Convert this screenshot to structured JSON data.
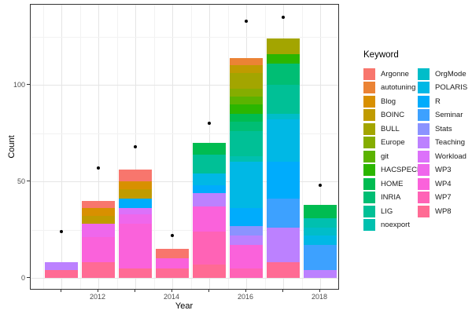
{
  "figure": {
    "y_axis": {
      "title": "Count",
      "tick_labels": [
        "0",
        "50",
        "100"
      ],
      "tick_values": [
        0,
        50,
        100
      ],
      "minor_values": [
        25,
        75,
        125
      ]
    },
    "x_axis": {
      "title": "Year",
      "tick_years": [
        2011,
        2012,
        2013,
        2014,
        2015,
        2016,
        2017,
        2018
      ],
      "labeled_years": [
        "2012",
        "2014",
        "2016",
        "2018"
      ]
    },
    "legend": {
      "title": "Keyword"
    },
    "chart_data": {
      "type": "bar",
      "stacked": true,
      "title": "",
      "xlabel": "Year",
      "ylabel": "Count",
      "ylim": [
        0,
        140
      ],
      "grid": true,
      "legend_position": "right",
      "categories": [
        2011,
        2012,
        2013,
        2014,
        2015,
        2016,
        2017,
        2018
      ],
      "series": [
        {
          "name": "Argonne",
          "color": "#F8766D",
          "values": [
            0,
            4,
            6,
            5,
            0,
            0,
            0,
            0
          ]
        },
        {
          "name": "autotuning",
          "color": "#EB8335",
          "values": [
            0,
            0,
            0,
            0,
            0,
            4,
            0,
            0
          ]
        },
        {
          "name": "Blog",
          "color": "#D89000",
          "values": [
            0,
            4,
            4,
            0,
            0,
            0,
            0,
            0
          ]
        },
        {
          "name": "BOINC",
          "color": "#C09B00",
          "values": [
            0,
            4,
            5,
            0,
            0,
            4,
            0,
            0
          ]
        },
        {
          "name": "BULL",
          "color": "#A3A500",
          "values": [
            0,
            0,
            0,
            0,
            0,
            8,
            8,
            0
          ]
        },
        {
          "name": "Europe",
          "color": "#85AD00",
          "values": [
            0,
            0,
            0,
            0,
            0,
            4,
            0,
            0
          ]
        },
        {
          "name": "git",
          "color": "#5BB300",
          "values": [
            0,
            0,
            0,
            0,
            0,
            4,
            0,
            0
          ]
        },
        {
          "name": "HACSPECIS",
          "color": "#2BB600",
          "values": [
            0,
            0,
            0,
            0,
            0,
            5,
            5,
            0
          ]
        },
        {
          "name": "HOME",
          "color": "#00BC51",
          "values": [
            0,
            0,
            0,
            0,
            6,
            4,
            0,
            7
          ]
        },
        {
          "name": "INRIA",
          "color": "#00BE74",
          "values": [
            0,
            0,
            0,
            0,
            0,
            5,
            11,
            0
          ]
        },
        {
          "name": "LIG",
          "color": "#00C096",
          "values": [
            0,
            0,
            0,
            0,
            10,
            13,
            15,
            0
          ]
        },
        {
          "name": "noexport",
          "color": "#00C0AF",
          "values": [
            0,
            0,
            0,
            0,
            0,
            3,
            0,
            5
          ]
        },
        {
          "name": "OrgMode",
          "color": "#00BDC9",
          "values": [
            0,
            0,
            0,
            0,
            0,
            0,
            3,
            4
          ]
        },
        {
          "name": "POLARIS",
          "color": "#00B8E5",
          "values": [
            0,
            0,
            0,
            0,
            6,
            24,
            22,
            5
          ]
        },
        {
          "name": "R",
          "color": "#00ACFC",
          "values": [
            0,
            0,
            5,
            0,
            4,
            9,
            19,
            0
          ]
        },
        {
          "name": "Seminar",
          "color": "#3DA1FF",
          "values": [
            0,
            0,
            0,
            0,
            0,
            0,
            15,
            13
          ]
        },
        {
          "name": "Stats",
          "color": "#8B93FF",
          "values": [
            0,
            0,
            0,
            0,
            0,
            5,
            0,
            0
          ]
        },
        {
          "name": "Teaching",
          "color": "#BC81FF",
          "values": [
            4,
            0,
            0,
            0,
            7,
            5,
            18,
            4
          ]
        },
        {
          "name": "Workload",
          "color": "#DC71FA",
          "values": [
            0,
            0,
            3,
            0,
            0,
            0,
            0,
            0
          ]
        },
        {
          "name": "WP3",
          "color": "#EF67EC",
          "values": [
            0,
            7,
            5,
            0,
            0,
            0,
            0,
            0
          ]
        },
        {
          "name": "WP4",
          "color": "#FA62DB",
          "values": [
            0,
            13,
            23,
            5,
            13,
            12,
            0,
            0
          ]
        },
        {
          "name": "WP7",
          "color": "#FF63B6",
          "values": [
            0,
            0,
            0,
            0,
            17,
            5,
            0,
            0
          ]
        },
        {
          "name": "WP8",
          "color": "#FF6B94",
          "values": [
            4,
            8,
            5,
            5,
            7,
            0,
            8,
            0
          ]
        }
      ],
      "bar_totals": [
        8,
        40,
        56,
        15,
        70,
        114,
        124,
        38
      ],
      "dots": {
        "marker": "point",
        "color": "#000000",
        "values": [
          24,
          57,
          68,
          22,
          80,
          133,
          135,
          48
        ]
      }
    }
  }
}
